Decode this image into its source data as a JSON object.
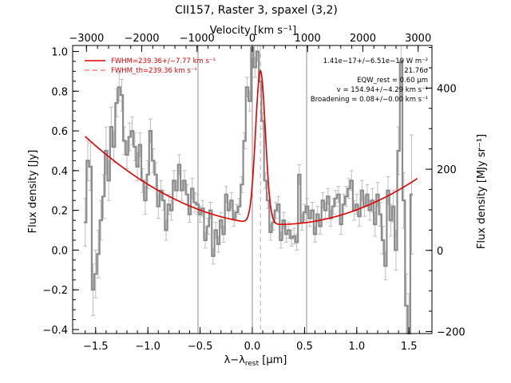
{
  "chart_data": {
    "type": "line",
    "title": "CII157, Raster 3, spaxel (3,2)",
    "xlabel_main": "λ−λ",
    "xlabel_sub": "rest",
    "xlabel_unit": " [μm]",
    "top_axis_label": "Velocity [km s⁻¹]",
    "ylabel": "Flux density [Jy]",
    "right_ylabel": "Flux density [MJy sr⁻¹]",
    "xlim": [
      -1.72,
      1.72
    ],
    "ylim": [
      -0.42,
      1.03
    ],
    "velocity_lim": [
      -3250,
      3250
    ],
    "right_ylim": [
      -205,
      505
    ],
    "x_ticks": [
      -1.5,
      -1.0,
      -0.5,
      0.0,
      0.5,
      1.0,
      1.5
    ],
    "x_tick_labels": [
      "−1.5",
      "−1.0",
      "−0.5",
      "0.0",
      "0.5",
      "1.0",
      "1.5"
    ],
    "y_ticks": [
      -0.4,
      -0.2,
      0.0,
      0.2,
      0.4,
      0.6,
      0.8,
      1.0
    ],
    "y_tick_labels": [
      "−0.4",
      "−0.2",
      "0.0",
      "0.2",
      "0.4",
      "0.6",
      "0.8",
      "1.0"
    ],
    "top_ticks": [
      -3000,
      -2000,
      -1000,
      0,
      1000,
      2000,
      3000
    ],
    "top_tick_labels": [
      "−3000",
      "−2000",
      "−1000",
      "0",
      "1000",
      "2000",
      "3000"
    ],
    "right_ticks": [
      -200,
      0,
      200,
      400
    ],
    "right_tick_labels": [
      "−200",
      "0",
      "200",
      "400"
    ],
    "vertical_lines": [
      -0.52,
      0.0,
      0.52
    ],
    "center_line": 0.078,
    "legend": {
      "position": "top-left",
      "entries": [
        "FWHM=239.36+/−7.77 km s⁻¹",
        "FWHM_th=239.36 km s⁻¹"
      ]
    },
    "annotations": [
      "1.41e−17+/−6.51e−19 W m⁻²",
      "21.76σ",
      "EQW_rest = 0.60 μm",
      "v = 154.94+/−4.29 km s⁻¹",
      "Broadening = 0.08+/−0.00 km s⁻¹"
    ],
    "series": [
      {
        "role": "spectrum",
        "x": [
          -1.6,
          -1.575,
          -1.55,
          -1.525,
          -1.5,
          -1.475,
          -1.45,
          -1.425,
          -1.4,
          -1.375,
          -1.35,
          -1.325,
          -1.3,
          -1.275,
          -1.25,
          -1.225,
          -1.2,
          -1.175,
          -1.15,
          -1.125,
          -1.1,
          -1.075,
          -1.05,
          -1.025,
          -1.0,
          -0.975,
          -0.95,
          -0.925,
          -0.9,
          -0.875,
          -0.85,
          -0.825,
          -0.8,
          -0.775,
          -0.75,
          -0.725,
          -0.7,
          -0.675,
          -0.65,
          -0.625,
          -0.6,
          -0.575,
          -0.55,
          -0.525,
          -0.5,
          -0.475,
          -0.45,
          -0.425,
          -0.4,
          -0.375,
          -0.35,
          -0.325,
          -0.3,
          -0.275,
          -0.25,
          -0.225,
          -0.2,
          -0.175,
          -0.15,
          -0.125,
          -0.1,
          -0.075,
          -0.05,
          -0.025,
          0.0,
          0.025,
          0.05,
          0.075,
          0.1,
          0.125,
          0.15,
          0.175,
          0.2,
          0.225,
          0.25,
          0.275,
          0.3,
          0.325,
          0.35,
          0.375,
          0.4,
          0.425,
          0.45,
          0.475,
          0.5,
          0.525,
          0.55,
          0.575,
          0.6,
          0.625,
          0.65,
          0.675,
          0.7,
          0.725,
          0.75,
          0.775,
          0.8,
          0.825,
          0.85,
          0.875,
          0.9,
          0.925,
          0.95,
          0.975,
          1.0,
          1.025,
          1.05,
          1.075,
          1.1,
          1.125,
          1.15,
          1.175,
          1.2,
          1.225,
          1.25,
          1.275,
          1.3,
          1.325,
          1.35,
          1.375,
          1.4,
          1.425,
          1.45,
          1.475,
          1.5,
          1.525
        ],
        "y": [
          0.14,
          0.45,
          0.42,
          -0.2,
          -0.12,
          -0.02,
          0.15,
          0.27,
          0.5,
          0.35,
          0.62,
          0.52,
          0.74,
          0.82,
          0.78,
          0.55,
          0.48,
          0.57,
          0.6,
          0.52,
          0.42,
          0.53,
          0.35,
          0.25,
          0.38,
          0.6,
          0.45,
          0.38,
          0.22,
          0.3,
          0.25,
          0.1,
          0.23,
          0.2,
          0.35,
          0.3,
          0.43,
          0.3,
          0.35,
          0.28,
          0.18,
          0.31,
          0.24,
          0.23,
          0.18,
          0.21,
          0.05,
          0.12,
          0.2,
          -0.03,
          0.1,
          0.03,
          0.15,
          0.08,
          0.28,
          0.2,
          0.25,
          0.16,
          0.19,
          0.22,
          0.33,
          0.55,
          0.82,
          0.75,
          1.02,
          0.92,
          1.0,
          0.85,
          0.65,
          0.35,
          0.25,
          0.09,
          0.14,
          0.2,
          0.23,
          0.05,
          0.15,
          0.08,
          0.1,
          0.06,
          0.07,
          0.04,
          0.38,
          0.14,
          0.19,
          0.22,
          0.16,
          0.2,
          0.08,
          0.18,
          0.12,
          0.25,
          0.2,
          0.27,
          0.16,
          0.22,
          0.26,
          0.28,
          0.13,
          0.23,
          0.27,
          0.31,
          0.35,
          0.2,
          0.23,
          0.17,
          0.3,
          0.22,
          0.28,
          0.2,
          0.25,
          0.13,
          0.28,
          0.18,
          0.05,
          -0.08,
          0.3,
          0.15,
          0.22,
          0.0,
          0.5,
          0.95,
          0.25,
          -0.28,
          -0.42,
          0.28
        ],
        "err": [
          0.12,
          0.1,
          0.12,
          0.13,
          0.12,
          0.12,
          0.1,
          0.11,
          0.12,
          0.1,
          0.1,
          0.08,
          0.07,
          0.07,
          0.08,
          0.07,
          0.07,
          0.07,
          0.07,
          0.07,
          0.07,
          0.06,
          0.06,
          0.07,
          0.07,
          0.06,
          0.06,
          0.06,
          0.06,
          0.05,
          0.05,
          0.05,
          0.05,
          0.05,
          0.05,
          0.05,
          0.05,
          0.05,
          0.05,
          0.05,
          0.04,
          0.05,
          0.05,
          0.05,
          0.04,
          0.04,
          0.04,
          0.04,
          0.04,
          0.04,
          0.04,
          0.04,
          0.04,
          0.04,
          0.04,
          0.04,
          0.04,
          0.04,
          0.04,
          0.04,
          0.04,
          0.04,
          0.05,
          0.05,
          0.05,
          0.05,
          0.05,
          0.05,
          0.04,
          0.04,
          0.04,
          0.04,
          0.04,
          0.04,
          0.04,
          0.04,
          0.04,
          0.04,
          0.04,
          0.04,
          0.04,
          0.04,
          0.05,
          0.04,
          0.04,
          0.04,
          0.04,
          0.04,
          0.04,
          0.04,
          0.04,
          0.04,
          0.04,
          0.04,
          0.04,
          0.04,
          0.04,
          0.04,
          0.05,
          0.05,
          0.05,
          0.05,
          0.05,
          0.05,
          0.05,
          0.05,
          0.05,
          0.05,
          0.05,
          0.05,
          0.06,
          0.06,
          0.06,
          0.06,
          0.07,
          0.07,
          0.07,
          0.08,
          0.08,
          0.1,
          0.12,
          0.2,
          0.14,
          0.16,
          0.2,
          0.3
        ]
      },
      {
        "role": "fit",
        "line_width_label": "FWHM",
        "center": 0.078,
        "sigma": 0.047,
        "amplitude": 0.77,
        "baseline_coeffs": [
          0.137,
          -0.064,
          0.13
        ]
      }
    ]
  }
}
